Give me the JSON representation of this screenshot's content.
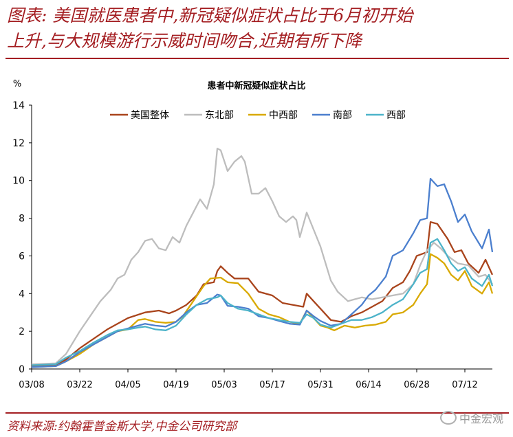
{
  "figure": {
    "title_line1": "图表: 美国就医患者中,新冠疑似症状占比于6月初开始",
    "title_line2": "上升,与大规模游行示威时间吻合,近期有所下降",
    "source": "资料来源:约翰霍普金斯大学,中金公司研究部",
    "watermark": "中金宏观"
  },
  "colors": {
    "title_red": "#a41e22",
    "us": "#a9441c",
    "northeast": "#bdbdbd",
    "central_west": "#d9a900",
    "south": "#4b7fce",
    "west": "#4cb3c9"
  },
  "chart_data": {
    "type": "line",
    "title": "患者中新冠疑似症状占比",
    "ylabel": "%",
    "xlabel": "",
    "ylim": [
      0,
      14
    ],
    "yticks": [
      0,
      2,
      4,
      6,
      8,
      10,
      12,
      14
    ],
    "x_start": "03/08",
    "x_end": "07/20",
    "xticks": [
      "03/08",
      "03/22",
      "04/05",
      "04/19",
      "05/03",
      "05/17",
      "05/31",
      "06/14",
      "06/28",
      "07/12"
    ],
    "legend_position": "top",
    "series": [
      {
        "name": "美国整体",
        "color_key": "us",
        "values": [
          [
            "03/08",
            0.15
          ],
          [
            "03/15",
            0.2
          ],
          [
            "03/18",
            0.5
          ],
          [
            "03/22",
            1.1
          ],
          [
            "03/26",
            1.6
          ],
          [
            "03/30",
            2.1
          ],
          [
            "04/01",
            2.3
          ],
          [
            "04/05",
            2.7
          ],
          [
            "04/10",
            3.0
          ],
          [
            "04/14",
            3.1
          ],
          [
            "04/17",
            2.95
          ],
          [
            "04/19",
            3.1
          ],
          [
            "04/22",
            3.4
          ],
          [
            "04/25",
            3.9
          ],
          [
            "04/27",
            4.5
          ],
          [
            "04/30",
            4.6
          ],
          [
            "05/01",
            5.2
          ],
          [
            "05/02",
            5.45
          ],
          [
            "05/04",
            5.1
          ],
          [
            "05/06",
            4.8
          ],
          [
            "05/10",
            4.8
          ],
          [
            "05/13",
            4.1
          ],
          [
            "05/17",
            3.9
          ],
          [
            "05/20",
            3.5
          ],
          [
            "05/23",
            3.4
          ],
          [
            "05/26",
            3.3
          ],
          [
            "05/27",
            4.0
          ],
          [
            "05/29",
            3.6
          ],
          [
            "05/31",
            3.2
          ],
          [
            "06/03",
            2.6
          ],
          [
            "06/06",
            2.5
          ],
          [
            "06/09",
            2.8
          ],
          [
            "06/12",
            3.0
          ],
          [
            "06/15",
            3.3
          ],
          [
            "06/18",
            3.6
          ],
          [
            "06/21",
            4.3
          ],
          [
            "06/24",
            4.6
          ],
          [
            "06/26",
            5.2
          ],
          [
            "06/28",
            6.0
          ],
          [
            "07/01",
            6.2
          ],
          [
            "07/02",
            7.8
          ],
          [
            "07/04",
            7.7
          ],
          [
            "07/07",
            6.9
          ],
          [
            "07/09",
            6.2
          ],
          [
            "07/11",
            6.3
          ],
          [
            "07/13",
            5.6
          ],
          [
            "07/16",
            5.1
          ],
          [
            "07/18",
            5.8
          ],
          [
            "07/20",
            5.0
          ]
        ]
      },
      {
        "name": "东北部",
        "color_key": "northeast",
        "values": [
          [
            "03/08",
            0.25
          ],
          [
            "03/15",
            0.3
          ],
          [
            "03/18",
            0.8
          ],
          [
            "03/22",
            2.0
          ],
          [
            "03/25",
            2.8
          ],
          [
            "03/28",
            3.6
          ],
          [
            "03/31",
            4.2
          ],
          [
            "04/02",
            4.8
          ],
          [
            "04/04",
            5.0
          ],
          [
            "04/06",
            5.8
          ],
          [
            "04/08",
            6.2
          ],
          [
            "04/10",
            6.8
          ],
          [
            "04/12",
            6.9
          ],
          [
            "04/14",
            6.4
          ],
          [
            "04/16",
            6.3
          ],
          [
            "04/18",
            7.0
          ],
          [
            "04/20",
            6.7
          ],
          [
            "04/22",
            7.6
          ],
          [
            "04/24",
            8.3
          ],
          [
            "04/26",
            9.0
          ],
          [
            "04/28",
            8.5
          ],
          [
            "04/30",
            9.8
          ],
          [
            "05/01",
            11.7
          ],
          [
            "05/02",
            11.6
          ],
          [
            "05/04",
            10.5
          ],
          [
            "05/06",
            11.0
          ],
          [
            "05/08",
            11.3
          ],
          [
            "05/09",
            11.0
          ],
          [
            "05/11",
            9.3
          ],
          [
            "05/13",
            9.3
          ],
          [
            "05/15",
            9.6
          ],
          [
            "05/17",
            8.9
          ],
          [
            "05/19",
            8.1
          ],
          [
            "05/21",
            7.8
          ],
          [
            "05/23",
            8.1
          ],
          [
            "05/24",
            7.9
          ],
          [
            "05/25",
            7.0
          ],
          [
            "05/27",
            8.3
          ],
          [
            "05/29",
            7.4
          ],
          [
            "05/31",
            6.5
          ],
          [
            "06/03",
            4.7
          ],
          [
            "06/05",
            4.1
          ],
          [
            "06/08",
            3.6
          ],
          [
            "06/10",
            3.7
          ],
          [
            "06/12",
            3.8
          ],
          [
            "06/15",
            3.7
          ],
          [
            "06/18",
            3.8
          ],
          [
            "06/21",
            3.9
          ],
          [
            "06/24",
            4.0
          ],
          [
            "06/27",
            4.5
          ],
          [
            "06/29",
            5.5
          ],
          [
            "07/01",
            6.3
          ],
          [
            "07/03",
            6.7
          ],
          [
            "07/05",
            6.4
          ],
          [
            "07/07",
            6.0
          ],
          [
            "07/10",
            5.6
          ],
          [
            "07/13",
            5.5
          ],
          [
            "07/16",
            4.9
          ],
          [
            "07/18",
            5.0
          ],
          [
            "07/20",
            4.5
          ]
        ]
      },
      {
        "name": "中西部",
        "color_key": "central_west",
        "values": [
          [
            "03/08",
            0.1
          ],
          [
            "03/15",
            0.15
          ],
          [
            "03/18",
            0.4
          ],
          [
            "03/22",
            0.8
          ],
          [
            "03/26",
            1.3
          ],
          [
            "03/30",
            1.7
          ],
          [
            "04/02",
            2.0
          ],
          [
            "04/05",
            2.1
          ],
          [
            "04/08",
            2.6
          ],
          [
            "04/10",
            2.65
          ],
          [
            "04/13",
            2.5
          ],
          [
            "04/16",
            2.45
          ],
          [
            "04/19",
            2.5
          ],
          [
            "04/21",
            2.8
          ],
          [
            "04/24",
            3.6
          ],
          [
            "04/27",
            4.4
          ],
          [
            "04/29",
            4.8
          ],
          [
            "05/02",
            4.85
          ],
          [
            "05/04",
            4.6
          ],
          [
            "05/07",
            4.55
          ],
          [
            "05/10",
            4.0
          ],
          [
            "05/13",
            3.2
          ],
          [
            "05/16",
            2.9
          ],
          [
            "05/19",
            2.75
          ],
          [
            "05/22",
            2.5
          ],
          [
            "05/25",
            2.4
          ],
          [
            "05/27",
            3.1
          ],
          [
            "05/29",
            2.7
          ],
          [
            "05/31",
            2.3
          ],
          [
            "06/02",
            2.2
          ],
          [
            "06/04",
            2.05
          ],
          [
            "06/07",
            2.3
          ],
          [
            "06/10",
            2.2
          ],
          [
            "06/13",
            2.3
          ],
          [
            "06/16",
            2.35
          ],
          [
            "06/19",
            2.5
          ],
          [
            "06/21",
            2.9
          ],
          [
            "06/24",
            3.0
          ],
          [
            "06/27",
            3.4
          ],
          [
            "06/29",
            4.0
          ],
          [
            "07/01",
            4.5
          ],
          [
            "07/02",
            6.1
          ],
          [
            "07/04",
            5.9
          ],
          [
            "07/06",
            5.6
          ],
          [
            "07/08",
            5.0
          ],
          [
            "07/10",
            4.7
          ],
          [
            "07/12",
            5.2
          ],
          [
            "07/14",
            4.4
          ],
          [
            "07/17",
            4.0
          ],
          [
            "07/19",
            4.6
          ],
          [
            "07/20",
            4.0
          ]
        ]
      },
      {
        "name": "南部",
        "color_key": "south",
        "values": [
          [
            "03/08",
            0.1
          ],
          [
            "03/15",
            0.15
          ],
          [
            "03/18",
            0.4
          ],
          [
            "03/22",
            0.9
          ],
          [
            "03/26",
            1.3
          ],
          [
            "03/30",
            1.7
          ],
          [
            "04/02",
            2.0
          ],
          [
            "04/05",
            2.15
          ],
          [
            "04/08",
            2.3
          ],
          [
            "04/10",
            2.4
          ],
          [
            "04/13",
            2.3
          ],
          [
            "04/16",
            2.25
          ],
          [
            "04/19",
            2.5
          ],
          [
            "04/22",
            3.0
          ],
          [
            "04/25",
            3.4
          ],
          [
            "04/28",
            3.5
          ],
          [
            "05/01",
            3.95
          ],
          [
            "05/02",
            3.9
          ],
          [
            "05/04",
            3.35
          ],
          [
            "05/07",
            3.3
          ],
          [
            "05/10",
            3.2
          ],
          [
            "05/13",
            2.8
          ],
          [
            "05/16",
            2.7
          ],
          [
            "05/19",
            2.55
          ],
          [
            "05/22",
            2.4
          ],
          [
            "05/25",
            2.35
          ],
          [
            "05/27",
            3.1
          ],
          [
            "05/29",
            2.8
          ],
          [
            "05/31",
            2.55
          ],
          [
            "06/03",
            2.3
          ],
          [
            "06/06",
            2.4
          ],
          [
            "06/09",
            2.9
          ],
          [
            "06/12",
            3.4
          ],
          [
            "06/14",
            3.9
          ],
          [
            "06/16",
            4.2
          ],
          [
            "06/19",
            4.9
          ],
          [
            "06/21",
            6.0
          ],
          [
            "06/24",
            6.3
          ],
          [
            "06/27",
            7.2
          ],
          [
            "06/29",
            7.9
          ],
          [
            "07/01",
            8.0
          ],
          [
            "07/02",
            10.1
          ],
          [
            "07/04",
            9.7
          ],
          [
            "07/06",
            9.8
          ],
          [
            "07/08",
            8.9
          ],
          [
            "07/10",
            7.8
          ],
          [
            "07/12",
            8.2
          ],
          [
            "07/14",
            7.3
          ],
          [
            "07/17",
            6.4
          ],
          [
            "07/19",
            7.4
          ],
          [
            "07/20",
            6.2
          ]
        ]
      },
      {
        "name": "西部",
        "color_key": "west",
        "values": [
          [
            "03/08",
            0.2
          ],
          [
            "03/15",
            0.25
          ],
          [
            "03/18",
            0.6
          ],
          [
            "03/22",
            0.95
          ],
          [
            "03/26",
            1.4
          ],
          [
            "03/30",
            1.8
          ],
          [
            "04/02",
            2.05
          ],
          [
            "04/05",
            2.1
          ],
          [
            "04/08",
            2.2
          ],
          [
            "04/10",
            2.25
          ],
          [
            "04/13",
            2.1
          ],
          [
            "04/16",
            2.05
          ],
          [
            "04/19",
            2.3
          ],
          [
            "04/22",
            2.9
          ],
          [
            "04/25",
            3.4
          ],
          [
            "04/28",
            3.7
          ],
          [
            "05/01",
            3.8
          ],
          [
            "05/02",
            3.9
          ],
          [
            "05/04",
            3.5
          ],
          [
            "05/07",
            3.2
          ],
          [
            "05/10",
            3.1
          ],
          [
            "05/13",
            2.9
          ],
          [
            "05/16",
            2.7
          ],
          [
            "05/19",
            2.6
          ],
          [
            "05/22",
            2.5
          ],
          [
            "05/25",
            2.45
          ],
          [
            "05/27",
            2.9
          ],
          [
            "05/29",
            2.7
          ],
          [
            "05/31",
            2.35
          ],
          [
            "06/03",
            2.2
          ],
          [
            "06/06",
            2.4
          ],
          [
            "06/09",
            2.6
          ],
          [
            "06/12",
            2.6
          ],
          [
            "06/15",
            2.75
          ],
          [
            "06/18",
            3.0
          ],
          [
            "06/21",
            3.4
          ],
          [
            "06/24",
            3.7
          ],
          [
            "06/27",
            4.5
          ],
          [
            "06/29",
            5.1
          ],
          [
            "07/01",
            5.3
          ],
          [
            "07/02",
            6.7
          ],
          [
            "07/04",
            6.9
          ],
          [
            "07/06",
            6.3
          ],
          [
            "07/08",
            5.6
          ],
          [
            "07/10",
            5.2
          ],
          [
            "07/12",
            5.4
          ],
          [
            "07/14",
            4.8
          ],
          [
            "07/17",
            4.4
          ],
          [
            "07/19",
            5.0
          ],
          [
            "07/20",
            4.4
          ]
        ]
      }
    ]
  }
}
